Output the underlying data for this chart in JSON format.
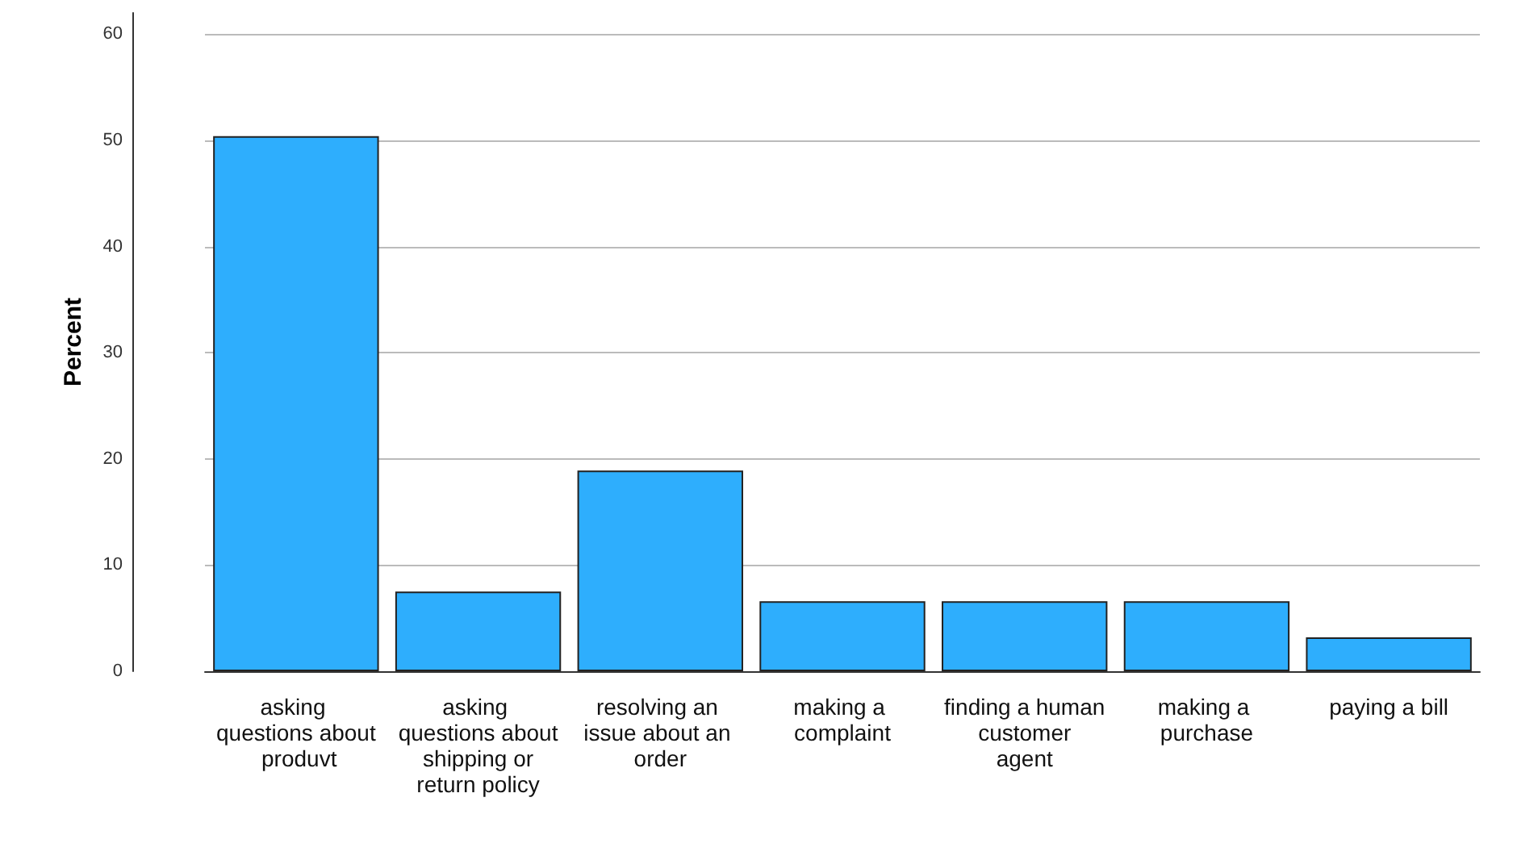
{
  "chart_data": {
    "type": "bar",
    "ylabel": "Percent",
    "categories": [
      "asking questions about produvt",
      "asking questions about shipping or return policy",
      "resolving an issue about an order",
      "making a complaint",
      "finding a human customer agent",
      "making a purchase",
      "paying a bill"
    ],
    "values": [
      50.4,
      7.5,
      18.9,
      6.6,
      6.6,
      6.6,
      3.2
    ],
    "color": "#2eaefd",
    "ylim": [
      0,
      62
    ],
    "yticks": [
      0,
      10,
      20,
      30,
      40,
      50,
      60
    ],
    "grid": "y"
  }
}
